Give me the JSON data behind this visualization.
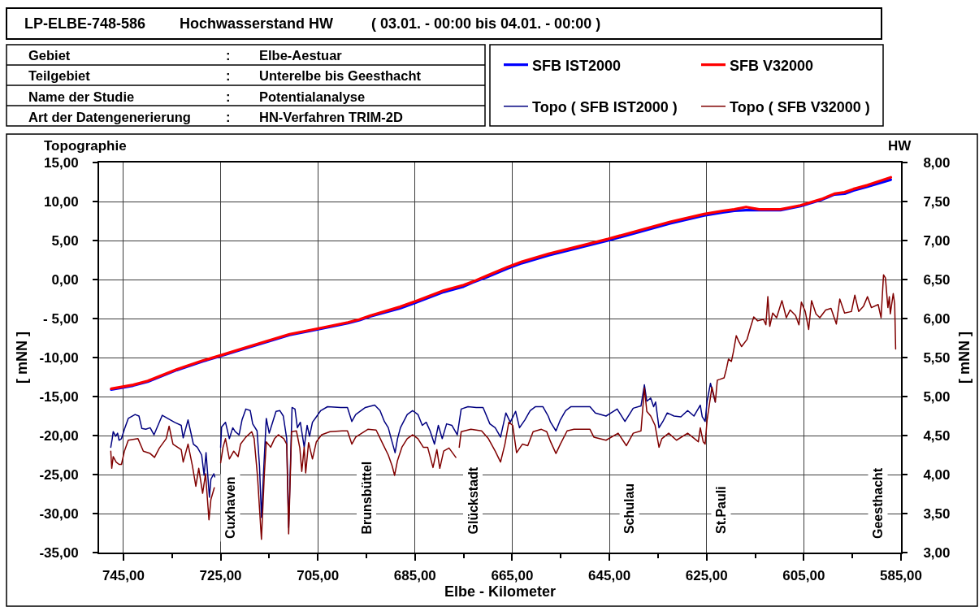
{
  "chart_data": {
    "type": "line",
    "title": "Hochwasserstand HW",
    "subtitle": "( 03.01. - 00:00 bis 04.01. - 00:00 )",
    "xlabel": "Elbe - Kilometer",
    "ylabel": "[ mNN ]",
    "y2label": "[ mNN ]",
    "xlim": [
      750,
      585
    ],
    "xticks": [
      {
        "value": 745,
        "label": "745,00"
      },
      {
        "value": 735,
        "label": null
      },
      {
        "value": 725,
        "label": "725,00"
      },
      {
        "value": 715,
        "label": null
      },
      {
        "value": 705,
        "label": "705,00"
      },
      {
        "value": 695,
        "label": null
      },
      {
        "value": 685,
        "label": "685,00"
      },
      {
        "value": 675,
        "label": null
      },
      {
        "value": 665,
        "label": "665,00"
      },
      {
        "value": 655,
        "label": null
      },
      {
        "value": 645,
        "label": "645,00"
      },
      {
        "value": 635,
        "label": null
      },
      {
        "value": 625,
        "label": "625,00"
      },
      {
        "value": 615,
        "label": null
      },
      {
        "value": 605,
        "label": "605,00"
      },
      {
        "value": 595,
        "label": null
      },
      {
        "value": 585,
        "label": "585,00"
      }
    ],
    "ylim": [
      -35,
      15
    ],
    "yticks": [
      {
        "value": 15,
        "label": "15,00"
      },
      {
        "value": 10,
        "label": "10,00"
      },
      {
        "value": 5,
        "label": "5,00"
      },
      {
        "value": 0,
        "label": "0,00"
      },
      {
        "value": -5,
        "label": "- 5,00"
      },
      {
        "value": -10,
        "label": "-10,00"
      },
      {
        "value": -15,
        "label": "-15,00"
      },
      {
        "value": -20,
        "label": "-20,00"
      },
      {
        "value": -25,
        "label": "-25,00"
      },
      {
        "value": -30,
        "label": "-30,00"
      },
      {
        "value": -35,
        "label": "-35,00"
      }
    ],
    "y2lim": [
      3,
      8
    ],
    "y2ticks": [
      {
        "value": 8,
        "label": "8,00"
      },
      {
        "value": 7.5,
        "label": "7,50"
      },
      {
        "value": 7,
        "label": "7,00"
      },
      {
        "value": 6.5,
        "label": "6,50"
      },
      {
        "value": 6,
        "label": "6,00"
      },
      {
        "value": 5.5,
        "label": "5,50"
      },
      {
        "value": 5,
        "label": "5,00"
      },
      {
        "value": 4.5,
        "label": "4,50"
      },
      {
        "value": 4,
        "label": "4,00"
      },
      {
        "value": 3.5,
        "label": "3,50"
      },
      {
        "value": 3,
        "label": "3,00"
      }
    ],
    "grid": true,
    "legend": "top right",
    "line_style": "solid",
    "annotations": [
      "LP-ELBE-748-586",
      "Gebiet",
      ":",
      "Elbe-Aestuar",
      "Teilgebiet",
      ":",
      "Unterelbe bis Geesthacht",
      "Name der Studie",
      ":",
      "Potentialanalyse",
      "Art der Datengenerierung",
      ":",
      "HN-Verfahren TRIM-2D",
      "Topographie",
      "HW",
      "Cuxhaven",
      "Brunsbüttel",
      "Glückstadt",
      "Schulau",
      "St.Pauli",
      "Geesthacht"
    ],
    "series": [
      {
        "name": "SFB IST2000",
        "color": "#0000ff",
        "axis": "y2",
        "x": [
          747.5,
          743,
          740,
          734,
          728.7,
          724.9,
          720.3,
          710.8,
          705.1,
          698.8,
          696.4,
          694.1,
          688.1,
          685,
          679.1,
          675,
          673.2,
          670.2,
          666,
          663,
          657.5,
          645.3,
          632.5,
          625.5,
          621.7,
          619.3,
          616.9,
          614.2,
          609.8,
          605.7,
          601.4,
          598.7,
          596.6,
          594.8,
          591.9,
          587.1
        ],
        "values": [
          5.09,
          5.14,
          5.19,
          5.34,
          5.45,
          5.52,
          5.61,
          5.79,
          5.86,
          5.94,
          5.98,
          6.03,
          6.13,
          6.2,
          6.34,
          6.41,
          6.46,
          6.53,
          6.64,
          6.71,
          6.81,
          7.0,
          7.22,
          7.32,
          7.36,
          7.38,
          7.39,
          7.39,
          7.39,
          7.44,
          7.52,
          7.59,
          7.6,
          7.64,
          7.69,
          7.78
        ]
      },
      {
        "name": "SFB V32000",
        "color": "#ff0000",
        "axis": "y2",
        "x": [
          747.5,
          743,
          740,
          734,
          728.7,
          724.9,
          720.3,
          710.8,
          705.1,
          698.8,
          696.4,
          694.1,
          688.1,
          685,
          679.1,
          675,
          673.2,
          670.2,
          666,
          663,
          657.5,
          645.3,
          632.5,
          625.5,
          621.7,
          619.3,
          616.9,
          614.2,
          609.8,
          605.7,
          601.4,
          598.7,
          596.6,
          594.8,
          591.9,
          587.1
        ],
        "values": [
          5.1,
          5.15,
          5.2,
          5.35,
          5.46,
          5.53,
          5.62,
          5.8,
          5.87,
          5.95,
          5.99,
          6.04,
          6.15,
          6.22,
          6.36,
          6.43,
          6.47,
          6.55,
          6.66,
          6.73,
          6.83,
          7.02,
          7.24,
          7.34,
          7.38,
          7.4,
          7.43,
          7.4,
          7.4,
          7.45,
          7.53,
          7.6,
          7.62,
          7.66,
          7.71,
          7.81
        ]
      },
      {
        "name": "Topo ( SFB IST2000 )",
        "color": "#000080",
        "x": [
          747.6,
          747.3,
          747.1,
          746.6,
          746.2,
          745.9,
          745.4,
          744.8,
          744.0,
          742.6,
          741.8,
          741.2,
          740.4,
          739.5,
          738.7,
          737.0,
          735.9,
          734.5,
          733.1,
          732.7,
          731.7,
          731.2,
          730.6,
          729.8,
          728.9,
          728.4,
          728.0,
          727.3,
          727.0,
          726.4,
          726.2,
          725.6,
          725.0,
          724.8,
          724.0,
          723.2,
          722.5,
          722.0,
          721.2,
          720.6,
          719.8,
          718.9,
          718.4,
          717.5,
          717.0,
          716.6,
          716.1,
          715.6,
          715.0,
          714.5,
          713.6,
          712.8,
          712.1,
          711.4,
          711.0,
          710.3,
          709.7,
          709.2,
          708.6,
          707.8,
          707.2,
          706.7,
          706.1,
          705.3,
          704.4,
          703.0,
          700.3,
          698.9,
          698.0,
          697.2,
          695.2,
          693.3,
          692.2,
          691.3,
          690.5,
          689.9,
          689.1,
          688.6,
          688.0,
          686.6,
          685.5,
          684.4,
          683.5,
          682.7,
          681.9,
          681.0,
          680.2,
          679.4,
          678.5,
          677.4,
          676.3,
          675.5,
          674.1,
          672.4,
          671.0,
          669.6,
          668.5,
          667.4,
          666.3,
          665.4,
          664.3,
          663.5,
          662.4,
          661.3,
          660.2,
          658.7,
          657.6,
          657.1,
          656.0,
          655.1,
          654.0,
          652.9,
          649.0,
          647.9,
          645.7,
          643.4,
          641.8,
          640.1,
          638.5,
          637.8,
          637.3,
          636.5,
          635.9,
          635.5,
          634.8,
          634.0,
          633.1,
          631.7,
          630.3,
          628.9,
          627.6,
          626.3,
          625.9,
          625.3,
          624.9,
          624.2,
          623.8,
          623.2
        ],
        "values": [
          -21.5,
          -20.4,
          -19.5,
          -20.1,
          -19.7,
          -20.6,
          -20.4,
          -19.2,
          -17.8,
          -17.3,
          -17.5,
          -19.1,
          -19.2,
          -19.0,
          -19.9,
          -17.4,
          -17.8,
          -18.3,
          -18.7,
          -20.3,
          -18.0,
          -19.4,
          -21.1,
          -21.5,
          -22.5,
          -25.1,
          -22.2,
          -27.9,
          -25.6,
          -24.9,
          -25.3,
          null,
          -21.5,
          -18.9,
          -18.3,
          -20.4,
          -19.0,
          -19.5,
          -19.9,
          -18.0,
          -16.6,
          -16.8,
          -18.5,
          -19.4,
          -23.9,
          -30.5,
          -23.9,
          -17.8,
          -19.7,
          -18.7,
          -16.9,
          -16.8,
          -17.5,
          -20.4,
          -31.8,
          -16.4,
          -16.6,
          -19.0,
          -18.3,
          -21.5,
          -18.7,
          -20.1,
          -18.3,
          -17.6,
          -16.8,
          -16.3,
          -16.4,
          -16.4,
          -18.2,
          -17.3,
          -16.4,
          -16.1,
          -16.8,
          -18.2,
          -19.0,
          -20.4,
          -22.2,
          -20.4,
          -19.0,
          -17.3,
          -16.8,
          -17.3,
          -18.7,
          -18.3,
          -19.4,
          -21.1,
          -18.7,
          -20.4,
          -18.5,
          -18.7,
          -19.9,
          -16.6,
          -16.3,
          -16.4,
          -16.4,
          -18.5,
          -19.0,
          -20.2,
          -17.1,
          -18.3,
          -16.9,
          -19.0,
          -18.0,
          -16.8,
          -16.3,
          -16.3,
          -17.5,
          -18.3,
          -19.4,
          -18.0,
          -16.8,
          -16.3,
          -16.3,
          -17.1,
          -17.5,
          -16.6,
          -18.2,
          -16.5,
          -16.2,
          -13.5,
          -15.6,
          -15.2,
          -16.3,
          -15.7,
          -19.0,
          -18.2,
          -17.1,
          -17.5,
          -17.6,
          -16.8,
          -17.5,
          -16.1,
          -17.6,
          -18.2,
          -15.6,
          -13.3,
          -14.3,
          -15.7
        ]
      },
      {
        "name": "Topo ( SFB V32000 )",
        "color": "#800000",
        "x": [
          747.6,
          747.4,
          747.1,
          746.5,
          745.9,
          745.4,
          744.8,
          744.0,
          742.0,
          740.9,
          739.5,
          738.6,
          737.6,
          736.2,
          735.6,
          734.8,
          733.1,
          732.7,
          731.7,
          730.8,
          730.1,
          729.5,
          728.7,
          728.1,
          727.4,
          727.0,
          726.3,
          725.6,
          725.0,
          724.5,
          724.0,
          723.2,
          722.3,
          721.4,
          720.9,
          719.8,
          718.6,
          718.1,
          717.4,
          716.6,
          716.0,
          715.6,
          714.7,
          713.9,
          713.1,
          712.0,
          711.4,
          711.0,
          710.4,
          709.4,
          708.7,
          708.3,
          707.8,
          707.5,
          706.9,
          706.1,
          705.3,
          704.2,
          702.5,
          700.0,
          698.9,
          698.0,
          697.2,
          694.7,
          693.0,
          691.6,
          690.5,
          689.7,
          689.2,
          688.6,
          687.7,
          686.6,
          685.5,
          684.4,
          683.3,
          682.4,
          681.3,
          680.5,
          679.9,
          679.1,
          678.0,
          676.6,
          676.2,
          675.9,
          675.5,
          673.5,
          671.3,
          669.9,
          668.5,
          667.4,
          666.5,
          665.7,
          664.9,
          664.1,
          662.9,
          661.8,
          660.7,
          659.0,
          657.9,
          657.1,
          656.0,
          655.1,
          653.7,
          652.3,
          649.0,
          648.2,
          645.7,
          643.2,
          641.5,
          640.1,
          638.5,
          637.8,
          637.3,
          636.5,
          635.6,
          634.8,
          634.2,
          632.8,
          631.2,
          628.9,
          626.7,
          626.3,
          625.7,
          625.3,
          624.9,
          624.4,
          623.9,
          623.2,
          622.8,
          622.3,
          621.4,
          620.9,
          620.5,
          619.9,
          619.5,
          618.9,
          618.4,
          617.8,
          616.7,
          616.0,
          615.3,
          614.5,
          613.3,
          612.8,
          612.4,
          612.0,
          611.4,
          610.6,
          609.5,
          608.6,
          607.8,
          606.7,
          606.0,
          605.5,
          604.7,
          604.0,
          603.4,
          602.5,
          601.7,
          600.5,
          599.4,
          598.3,
          597.6,
          596.6,
          595.2,
          594.5,
          593.7,
          592.7,
          591.9,
          591.1,
          589.7,
          589.1,
          588.6,
          588.2,
          587.7,
          587.4,
          587.2,
          586.6,
          586.3,
          586.1
        ],
        "values": [
          -22.0,
          -24.2,
          -22.7,
          -23.4,
          -23.7,
          -23.7,
          -22.0,
          -20.6,
          -20.4,
          -22.0,
          -22.3,
          -22.8,
          -21.6,
          -20.4,
          -18.8,
          -21.1,
          -21.8,
          -23.4,
          -21.1,
          -23.9,
          -26.5,
          -24.2,
          -27.4,
          -24.9,
          -30.8,
          -28.2,
          -26.7,
          null,
          -23.5,
          -21.5,
          -20.4,
          -23.0,
          -22.0,
          -22.7,
          -21.1,
          -20.2,
          -19.5,
          -20.4,
          -25.3,
          -33.3,
          -24.9,
          -20.8,
          -21.5,
          -20.4,
          -19.9,
          -20.4,
          -21.1,
          -32.6,
          -19.5,
          -19.4,
          -21.6,
          -24.6,
          -21.5,
          -24.8,
          -20.9,
          -23.0,
          -20.8,
          -19.9,
          -19.5,
          -19.4,
          -19.4,
          -21.1,
          -20.2,
          -19.2,
          -19.3,
          -21.1,
          -22.5,
          -23.9,
          -25.1,
          -23.2,
          -21.5,
          -20.4,
          -19.9,
          -20.4,
          -21.5,
          -21.5,
          -24.1,
          -21.8,
          -24.2,
          -22.0,
          -21.6,
          -22.8,
          null,
          -21.5,
          -19.5,
          -19.2,
          -19.4,
          -20.4,
          -22.0,
          -23.4,
          -21.1,
          -18.3,
          -18.7,
          -22.2,
          -21.1,
          -21.3,
          -19.5,
          -19.2,
          -19.5,
          -20.8,
          -22.3,
          -21.1,
          -19.4,
          -19.2,
          -19.2,
          -20.2,
          -20.6,
          -19.7,
          -21.3,
          -19.7,
          -19.4,
          -13.9,
          -16.9,
          -17.5,
          -18.7,
          -21.5,
          -20.4,
          -19.7,
          -20.6,
          -19.7,
          -20.8,
          -19.0,
          -20.8,
          -21.1,
          -18.0,
          -15.9,
          -13.8,
          -15.7,
          -12.9,
          -12.8,
          -12.6,
          -11.4,
          -10.2,
          -10.5,
          -9.3,
          -7.2,
          -7.9,
          -8.6,
          -7.7,
          -6.2,
          -4.8,
          -5.3,
          -5.1,
          -5.8,
          -2.2,
          -6.0,
          -4.3,
          -4.9,
          -2.7,
          -4.9,
          -3.9,
          -4.6,
          -5.8,
          -2.9,
          -4.1,
          -6.4,
          -2.7,
          -4.4,
          -4.9,
          -3.9,
          -3.7,
          -5.7,
          -2.5,
          -4.3,
          -4.1,
          -2.0,
          -4.1,
          -3.4,
          -2.2,
          -3.6,
          -3.2,
          -4.9,
          0.6,
          0.2,
          -3.6,
          -2.2,
          -4.4,
          -1.8,
          -3.1,
          -8.9
        ]
      }
    ]
  }
}
